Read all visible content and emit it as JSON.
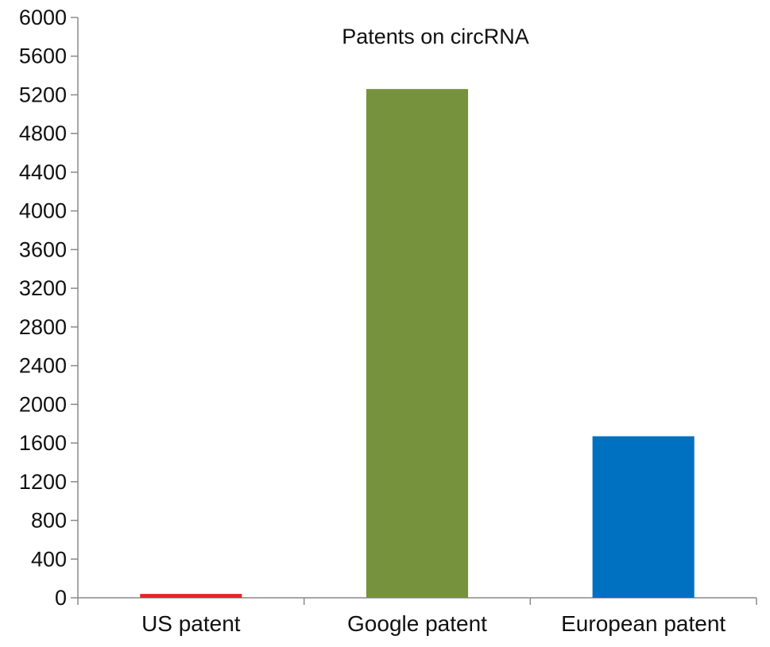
{
  "chart_data": {
    "type": "bar",
    "title": "Patents on circRNA",
    "xlabel": "",
    "ylabel": "",
    "categories": [
      "US patent",
      "Google patent",
      "European patent"
    ],
    "values": [
      40,
      5260,
      1670
    ],
    "colors": [
      "#e8232a",
      "#76923c",
      "#0070c0"
    ],
    "ylim": [
      0,
      6000
    ],
    "yticks": [
      0,
      400,
      800,
      1200,
      1600,
      2000,
      2400,
      2800,
      3200,
      3600,
      4000,
      4400,
      4800,
      5200,
      5600,
      6000
    ],
    "grid": false,
    "legend": "none"
  }
}
